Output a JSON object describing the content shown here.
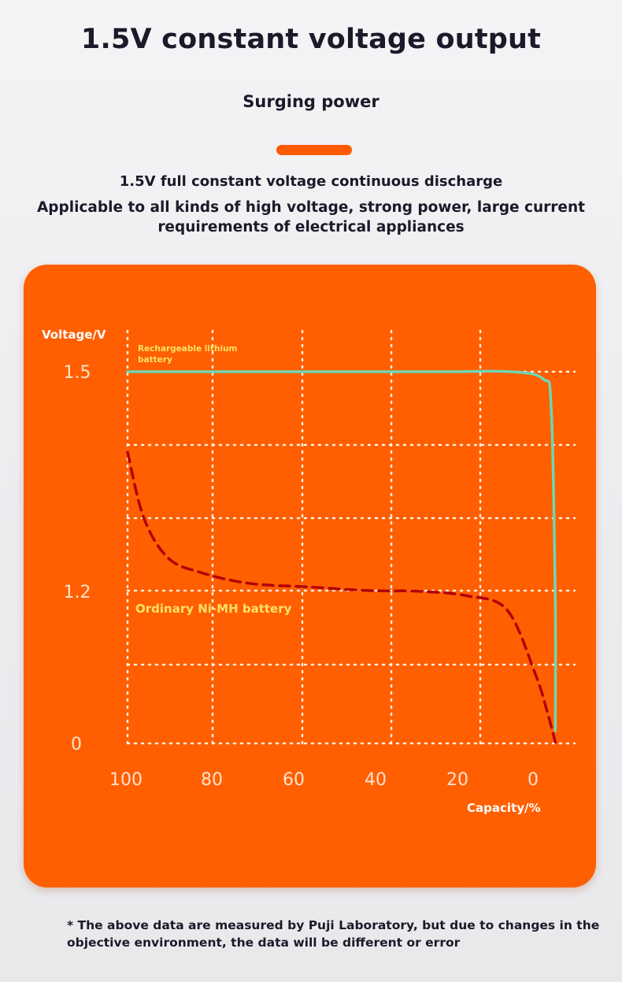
{
  "header": {
    "title": "1.5V constant voltage output",
    "subtitle": "Surging power",
    "desc_line1": "1.5V full constant voltage continuous discharge",
    "desc_line2": "Applicable to all kinds of high voltage, strong power, large current requirements of electrical appliances"
  },
  "colors": {
    "accent": "#ff5a00",
    "card": "#ff5f00",
    "lithium_line": "#6fd6b4",
    "nimh_line": "#b3000a",
    "label_yellow": "#ffe066"
  },
  "chart_data": {
    "type": "line",
    "ylabel": "Voltage/V",
    "xlabel": "Capacity/%",
    "x_ticks": [
      "100",
      "80",
      "60",
      "40",
      "20",
      "0"
    ],
    "y_ticks": [
      "1.5",
      "1.2",
      "0"
    ],
    "grid": true,
    "series": [
      {
        "name": "Rechargeable lithium battery",
        "style": "solid",
        "points": [
          [
            100,
            1.5
          ],
          [
            80,
            1.5
          ],
          [
            60,
            1.5
          ],
          [
            40,
            1.5
          ],
          [
            20,
            1.5
          ],
          [
            5,
            1.5
          ],
          [
            -3,
            1.49
          ],
          [
            -5,
            1.45
          ],
          [
            -6,
            1.1
          ],
          [
            -6,
            0.1
          ]
        ]
      },
      {
        "name": "Ordinary Ni-MH battery",
        "style": "dashed",
        "points": [
          [
            100,
            1.39
          ],
          [
            96,
            1.3
          ],
          [
            90,
            1.245
          ],
          [
            82,
            1.225
          ],
          [
            70,
            1.21
          ],
          [
            55,
            1.205
          ],
          [
            40,
            1.2
          ],
          [
            28,
            1.195
          ],
          [
            16,
            1.16
          ],
          [
            6,
            1.05
          ],
          [
            -1,
            0.55
          ],
          [
            -4,
            0.25
          ],
          [
            -6,
            0.01
          ]
        ]
      }
    ]
  },
  "footnote": "* The above data are measured by Puji Laboratory, but due to changes in the objective environment, the data will be different or error"
}
